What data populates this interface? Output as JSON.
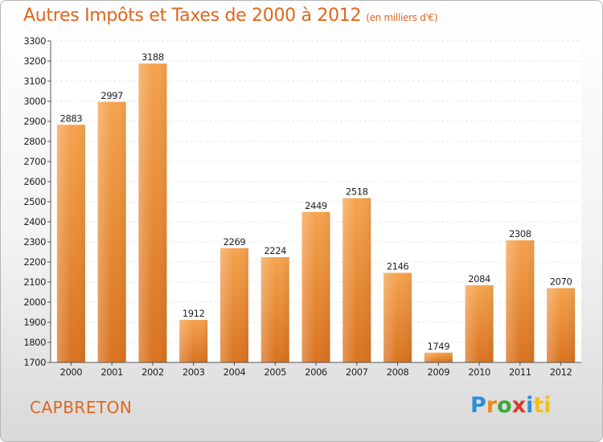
{
  "title": "Autres Impôts et Taxes de 2000 à 2012",
  "subtitle": "(en milliers d'€)",
  "city": "CAPBRETON",
  "logo": [
    "P",
    "r",
    "o",
    "x",
    "i",
    "ti"
  ],
  "colors": {
    "bar_light": "#f5a34e",
    "bar_dark": "#d9731f",
    "accent": "#e0661c"
  },
  "chart_data": {
    "type": "bar",
    "title": "Autres Impôts et Taxes de 2000 à 2012",
    "subtitle": "(en milliers d'€)",
    "categories": [
      "2000",
      "2001",
      "2002",
      "2003",
      "2004",
      "2005",
      "2006",
      "2007",
      "2008",
      "2009",
      "2010",
      "2011",
      "2012"
    ],
    "values": [
      2883,
      2997,
      3188,
      1912,
      2269,
      2224,
      2449,
      2518,
      2146,
      1749,
      2084,
      2308,
      2070
    ],
    "ylim": [
      1700,
      3300
    ],
    "yticks": [
      1700,
      1800,
      1900,
      2000,
      2100,
      2200,
      2300,
      2400,
      2500,
      2600,
      2700,
      2800,
      2900,
      3000,
      3100,
      3200,
      3300
    ],
    "grid": true,
    "data_labels": true
  }
}
